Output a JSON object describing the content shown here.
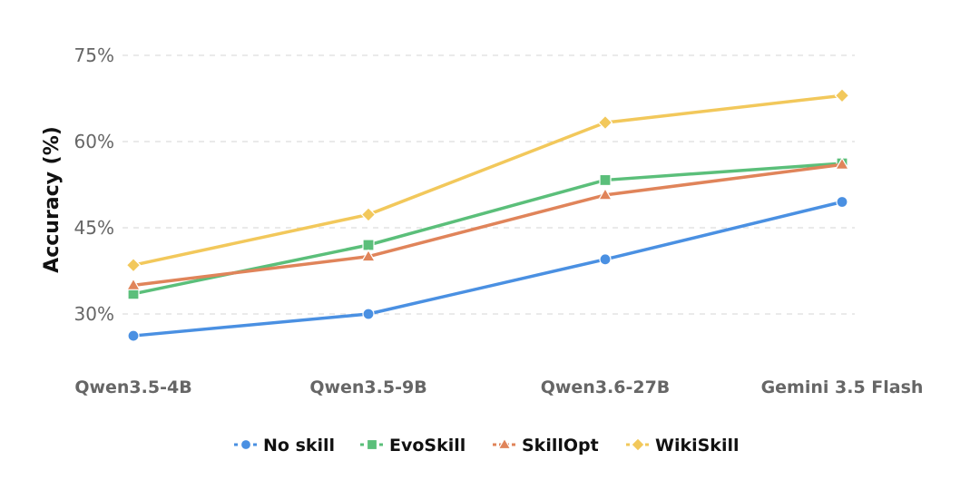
{
  "chart_data": {
    "type": "line",
    "title": "",
    "xlabel": "",
    "ylabel": "Accuracy (%)",
    "categories": [
      "Qwen3.5-4B",
      "Qwen3.5-9B",
      "Qwen3.6-27B",
      "Gemini 3.5 Flash"
    ],
    "ylim": [
      23,
      77
    ],
    "yticks": [
      30,
      45,
      60,
      75
    ],
    "ytick_labels": [
      "30%",
      "45%",
      "60%",
      "75%"
    ],
    "grid": "horizontal-dashed",
    "legend_position": "bottom-center",
    "series": [
      {
        "name": "No skill",
        "color": "#4a90e2",
        "marker": "circle",
        "values": [
          26.2,
          30.0,
          39.5,
          49.5
        ]
      },
      {
        "name": "EvoSkill",
        "color": "#5bbf7a",
        "marker": "square",
        "values": [
          33.5,
          42.0,
          53.3,
          56.2
        ]
      },
      {
        "name": "SkillOpt",
        "color": "#e0845a",
        "marker": "triangle",
        "values": [
          35.0,
          40.0,
          50.7,
          56.0
        ]
      },
      {
        "name": "WikiSkill",
        "color": "#f2c85b",
        "marker": "diamond",
        "values": [
          38.5,
          47.3,
          63.3,
          68.0
        ]
      }
    ]
  }
}
